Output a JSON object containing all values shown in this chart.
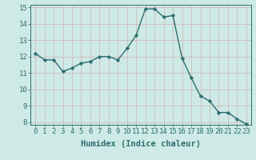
{
  "x": [
    0,
    1,
    2,
    3,
    4,
    5,
    6,
    7,
    8,
    9,
    10,
    11,
    12,
    13,
    14,
    15,
    16,
    17,
    18,
    19,
    20,
    21,
    22,
    23
  ],
  "y": [
    12.2,
    11.8,
    11.8,
    11.1,
    11.3,
    11.6,
    11.7,
    12.0,
    12.0,
    11.8,
    12.5,
    13.3,
    14.9,
    14.9,
    14.4,
    14.5,
    11.9,
    10.7,
    9.6,
    9.3,
    8.6,
    8.6,
    8.2,
    7.9
  ],
  "line_color": "#2d6e6e",
  "marker": "D",
  "marker_size": 2.2,
  "bg_color": "#ceeae6",
  "grid_color_major": "#c0d8d4",
  "grid_color_minor": "#daeee8",
  "xlabel": "Humidex (Indice chaleur)",
  "ylim": [
    8,
    15
  ],
  "xlim": [
    -0.5,
    23.5
  ],
  "yticks": [
    8,
    9,
    10,
    11,
    12,
    13,
    14,
    15
  ],
  "xticks": [
    0,
    1,
    2,
    3,
    4,
    5,
    6,
    7,
    8,
    9,
    10,
    11,
    12,
    13,
    14,
    15,
    16,
    17,
    18,
    19,
    20,
    21,
    22,
    23
  ],
  "tick_color": "#2d6e6e",
  "label_color": "#2d6e6e",
  "xlabel_fontsize": 7.5,
  "tick_fontsize": 6.5,
  "linewidth": 1.0
}
